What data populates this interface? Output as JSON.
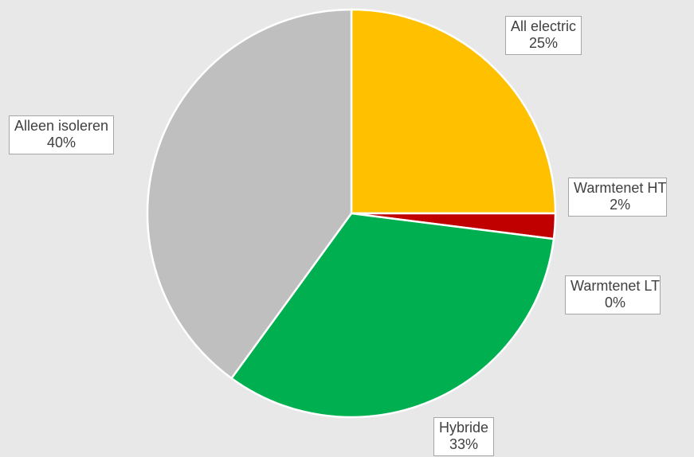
{
  "chart_data": {
    "type": "pie",
    "title": "",
    "start_angle_deg": 0,
    "direction": "clockwise",
    "slices": [
      {
        "label": "All electric",
        "value": 25,
        "display": "25%",
        "color": "#ffc000"
      },
      {
        "label": "Warmtenet HT",
        "value": 2,
        "display": "2%",
        "color": "#c00000"
      },
      {
        "label": "Warmtenet LT",
        "value": 0,
        "display": "0%",
        "color": "#4472c4"
      },
      {
        "label": "Hybride",
        "value": 33,
        "display": "33%",
        "color": "#00b050"
      },
      {
        "label": "Alleen isoleren",
        "value": 40,
        "display": "40%",
        "color": "#bfbfbf"
      }
    ],
    "legend": "none",
    "background": "#e8e8e8"
  }
}
